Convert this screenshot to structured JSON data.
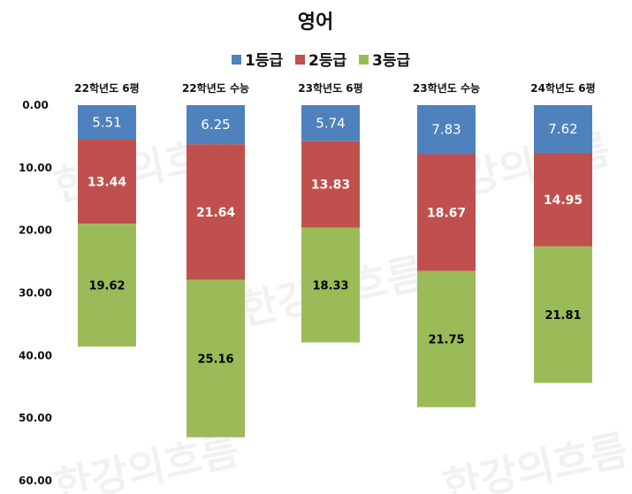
{
  "chart_data": {
    "type": "bar",
    "stacked": true,
    "y_axis_inverted": true,
    "title": "영어",
    "categories": [
      "22학년도 6평",
      "22학년도 수능",
      "23학년도 6평",
      "23학년도 수능",
      "24학년도 6평"
    ],
    "series": [
      {
        "name": "1등급",
        "color": "#4F81BD",
        "values": [
          5.51,
          6.25,
          5.74,
          7.83,
          7.62
        ]
      },
      {
        "name": "2등급",
        "color": "#C0504D",
        "values": [
          13.44,
          21.64,
          13.83,
          18.67,
          14.95
        ]
      },
      {
        "name": "3등급",
        "color": "#9BBB59",
        "values": [
          19.62,
          25.16,
          18.33,
          21.75,
          21.81
        ]
      }
    ],
    "value_labels": [
      [
        "5.51",
        "13.44",
        "19.62"
      ],
      [
        "6.25",
        "21.64",
        "25.16"
      ],
      [
        "5.74",
        "13.83",
        "18.33"
      ],
      [
        "7.83",
        "18.67",
        "21.75"
      ],
      [
        "7.62",
        "14.95",
        "21.81"
      ]
    ],
    "y_ticks": [
      "0.00",
      "10.00",
      "20.00",
      "30.00",
      "40.00",
      "50.00",
      "60.00"
    ],
    "ylim": [
      0,
      60
    ],
    "legend_position": "top",
    "grid": false
  },
  "watermark_text": "한강의흐름"
}
